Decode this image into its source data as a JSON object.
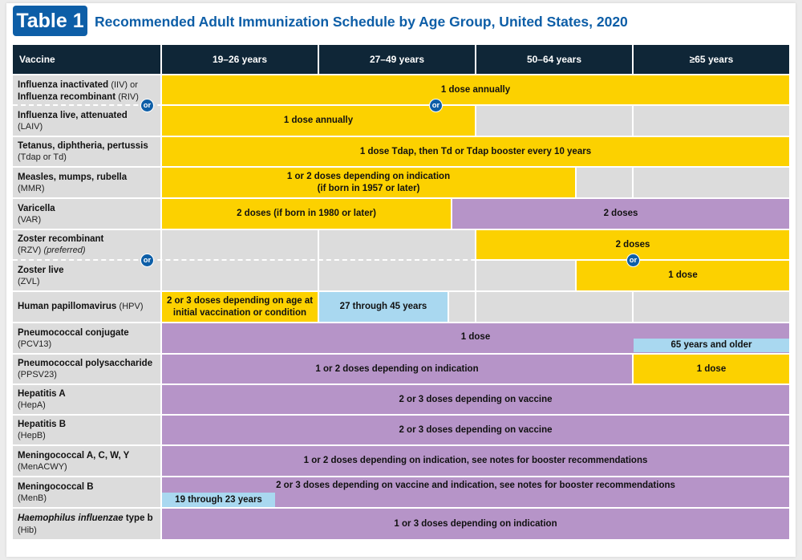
{
  "title": {
    "badge": "Table 1",
    "text": "Recommended Adult Immunization Schedule by Age Group, United States, 2020"
  },
  "header": {
    "vaccine": "Vaccine",
    "ages": [
      "19–26 years",
      "27–49 years",
      "50–64 years",
      "≥65 years"
    ]
  },
  "or_label": "or",
  "vaccines": {
    "iiv": {
      "name": "Influenza inactivated",
      "abbr": "(IIV) or",
      "name2": "Influenza recombinant",
      "abbr2": "(RIV)"
    },
    "laiv": {
      "name": "Influenza live, attenuated",
      "abbr": "(LAIV)"
    },
    "tdap": {
      "name": "Tetanus, diphtheria, pertussis",
      "abbr": "(Tdap or Td)"
    },
    "mmr": {
      "name": "Measles, mumps, rubella",
      "abbr": "(MMR)"
    },
    "var": {
      "name": "Varicella",
      "abbr": "(VAR)"
    },
    "rzv": {
      "name": "Zoster recombinant",
      "abbr": "(RZV)",
      "note": "(preferred)"
    },
    "zvl": {
      "name": "Zoster live",
      "abbr": "(ZVL)"
    },
    "hpv": {
      "name": "Human papillomavirus",
      "abbr": "(HPV)"
    },
    "pcv13": {
      "name": "Pneumococcal conjugate",
      "abbr": "(PCV13)"
    },
    "ppsv23": {
      "name": "Pneumococcal polysaccharide",
      "abbr": "(PPSV23)"
    },
    "hepa": {
      "name": "Hepatitis A",
      "abbr": "(HepA)"
    },
    "hepb": {
      "name": "Hepatitis B",
      "abbr": "(HepB)"
    },
    "menacwy": {
      "name": "Meningococcal A, C, W, Y",
      "abbr": "(MenACWY)"
    },
    "menb": {
      "name": "Meningococcal B",
      "abbr": "(MenB)"
    },
    "hib": {
      "name": "Haemophilus influenzae",
      "name_suffix": " type b",
      "abbr": "(Hib)"
    }
  },
  "cells": {
    "influenza_annual": "1 dose annually",
    "laiv_annual": "1 dose annually",
    "tdap": "1 dose Tdap, then Td or Tdap booster every 10 years",
    "mmr_line1": "1 or 2 doses depending on indication",
    "mmr_line2": "(if born in 1957 or later)",
    "var_young": "2 doses (if born in 1980 or later)",
    "var_old": "2 doses",
    "rzv": "2 doses",
    "zvl": "1 dose",
    "hpv_young_line1": "2 or 3 doses depending on age at",
    "hpv_young_line2": "initial vaccination or condition",
    "hpv_mid": "27 through 45 years",
    "pcv13": "1 dose",
    "pcv13_65": "65 years and older",
    "ppsv23": "1 or 2 doses depending on indication",
    "ppsv23_65": "1 dose",
    "hepa": "2 or 3 doses depending on vaccine",
    "hepb": "2 or 3 doses depending on vaccine",
    "menacwy": "1 or 2 doses depending on indication, see notes for booster recommendations",
    "menb": "2 or 3 doses depending on vaccine and indication, see notes for booster recommendations",
    "menb_young": "19 through 23 years",
    "hib": "1 or 3 doses depending on indication"
  },
  "colors": {
    "recommended": "#fcd100",
    "risk_indication": "#b694c8",
    "shared_decision": "#a9d8f0",
    "no_recommendation": "#dcdcdc",
    "header": "#0f2637",
    "brand": "#0d5ea7"
  }
}
